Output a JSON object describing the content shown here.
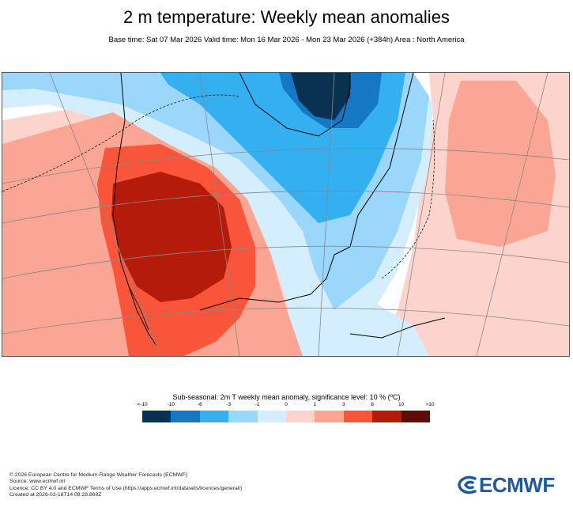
{
  "header": {
    "title": "2 m temperature: Weekly mean anomalies",
    "subtitle": "Base time: Sat 07 Mar 2026 Valid time: Mon 16 Mar 2026 - Mon 23 Mar 2026 (+384h) Area : North America"
  },
  "legend": {
    "title": "Sub-seasonal: 2m T weekly mean anomaly, significance level: 10 % (ºC)",
    "ticks": [
      "<-10",
      "-10",
      "-6",
      "-3",
      "-1",
      "0",
      "1",
      "3",
      "6",
      "10",
      ">10"
    ],
    "colors": [
      "#08324f",
      "#1677c4",
      "#34aff0",
      "#9bd6fb",
      "#d4eefd",
      "#ffffff",
      "#fdd3cd",
      "#fba594",
      "#f9553a",
      "#b41b0b",
      "#5c0b06"
    ]
  },
  "footer": {
    "lines": [
      "© 2026 European Centre for Medium-Range Weather Forecasts (ECMWF)",
      "Source: www.ecmwf.int",
      "Licence: CC BY 4.0 and ECMWF Terms of Use (https://apps.ecmwf.int/datasets/licences/general/)",
      "Created at 2026-03-18T14:08:28.869Z"
    ]
  },
  "logo": {
    "text": "ECMWF",
    "color": "#1f5b9c"
  }
}
